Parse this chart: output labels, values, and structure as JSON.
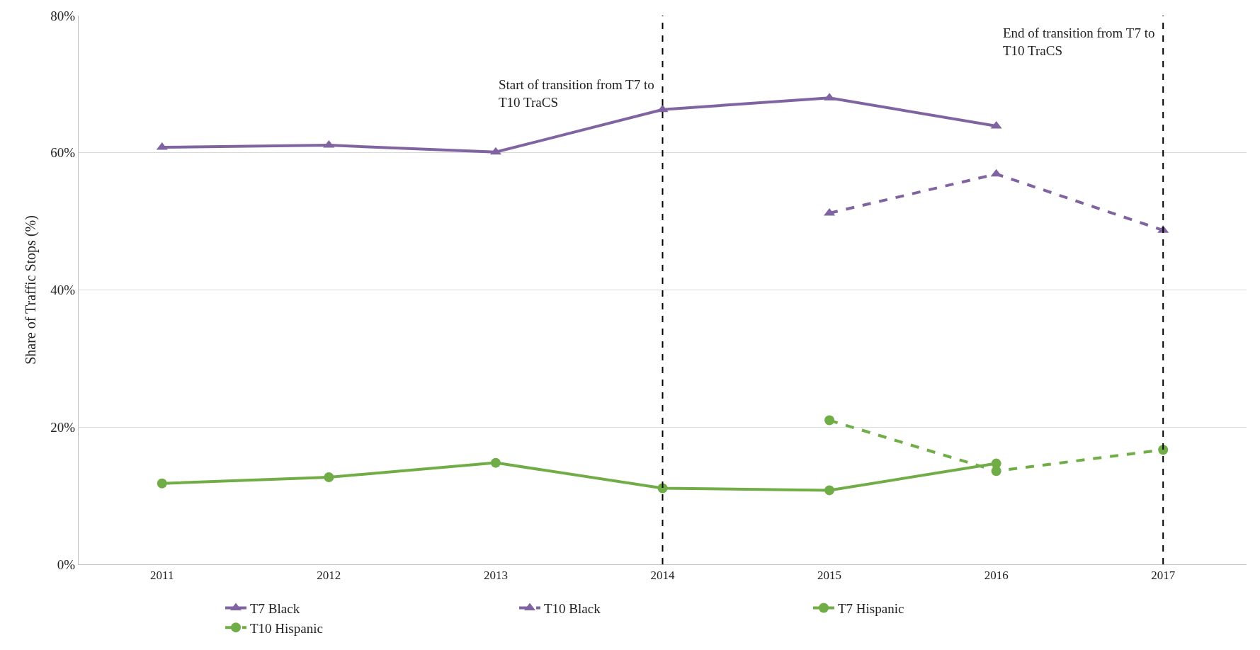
{
  "chart_data": {
    "type": "line",
    "ylabel": "Share of Traffic Stops (%)",
    "categories": [
      "2011",
      "2012",
      "2013",
      "2014",
      "2015",
      "2016",
      "2017"
    ],
    "series": [
      {
        "name": "T7 Black",
        "color": "#8064a2",
        "marker": "triangle",
        "line_style": "solid",
        "values": [
          60.8,
          61.1,
          60.1,
          66.3,
          68.0,
          63.9,
          null
        ]
      },
      {
        "name": "T10 Black",
        "color": "#8064a2",
        "marker": "triangle",
        "line_style": "dashed",
        "values": [
          null,
          null,
          null,
          null,
          51.2,
          56.9,
          48.7
        ]
      },
      {
        "name": "T7 Hispanic",
        "color": "#70ad47",
        "marker": "circle",
        "line_style": "solid",
        "values": [
          11.8,
          12.7,
          14.8,
          11.1,
          10.8,
          14.7,
          null
        ]
      },
      {
        "name": "T10 Hispanic",
        "color": "#70ad47",
        "marker": "circle",
        "line_style": "dashed",
        "values": [
          null,
          null,
          null,
          null,
          21.0,
          13.6,
          16.7
        ]
      }
    ],
    "ylim": [
      0,
      80
    ],
    "yticks": [
      {
        "value": 0,
        "label": "0%"
      },
      {
        "value": 20,
        "label": "20%"
      },
      {
        "value": 40,
        "label": "40%"
      },
      {
        "value": 60,
        "label": "60%"
      },
      {
        "value": 80,
        "label": "80%"
      }
    ],
    "ref_lines": [
      {
        "axis": "x",
        "value": "2014",
        "label": "Start of transition from T7 to\nT10 TraCS",
        "color": "#000000",
        "line_style": "dashed"
      },
      {
        "axis": "x",
        "value": "2017",
        "label": "End of transition from T7 to\nT10 TraCS",
        "color": "#000000",
        "line_style": "dashed"
      }
    ],
    "grid": "y",
    "legend": "bottom"
  }
}
